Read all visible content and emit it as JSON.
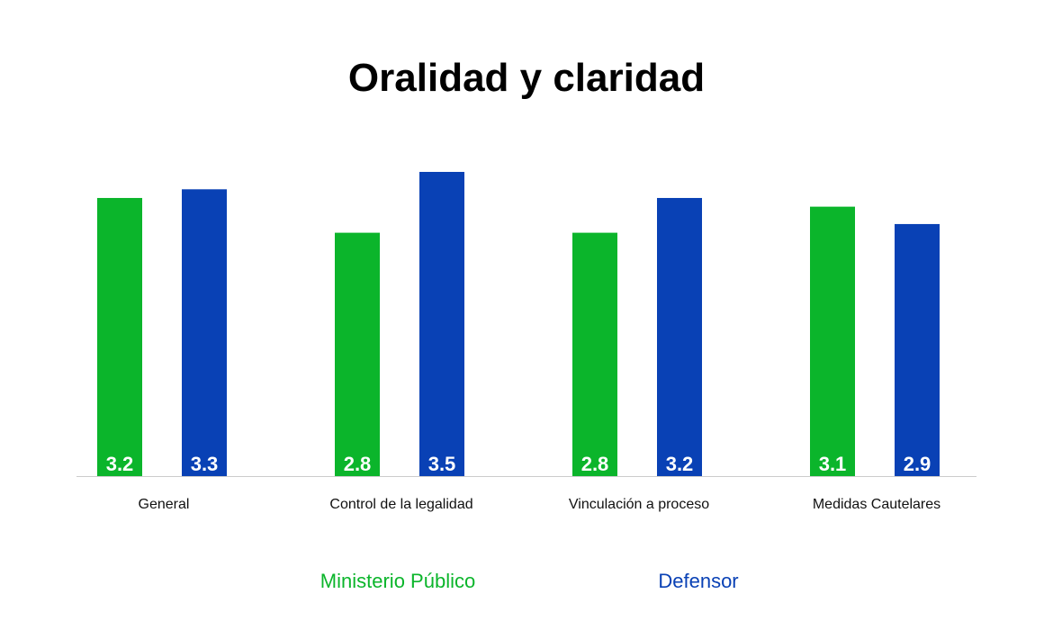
{
  "chart_data": {
    "type": "bar",
    "title": "Oralidad y claridad",
    "categories": [
      "General",
      "Control de la legalidad",
      "Vinculación a proceso",
      "Medidas Cautelares"
    ],
    "series": [
      {
        "name": "Ministerio Público",
        "color": "#0bb52b",
        "values": [
          3.2,
          2.8,
          2.8,
          3.1
        ]
      },
      {
        "name": "Defensor",
        "color": "#0941b5",
        "values": [
          3.3,
          3.5,
          3.2,
          2.9
        ]
      }
    ],
    "xlabel": "",
    "ylabel": "",
    "ylim": [
      0,
      3.5
    ],
    "grid": false,
    "legend": "bottom-center"
  }
}
